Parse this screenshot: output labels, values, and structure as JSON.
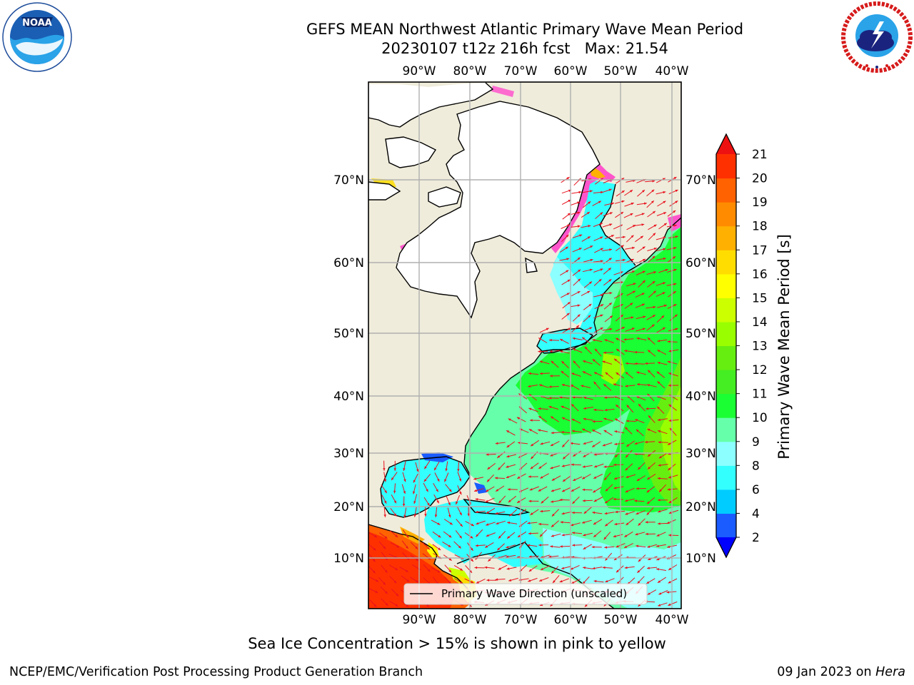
{
  "title": {
    "line1": "GEFS MEAN Northwest Atlantic Primary Wave Mean Period",
    "line2": "20230107 t12z 216h fcst   Max: 21.54"
  },
  "logos": {
    "left": {
      "icon": "noaa-logo",
      "text": "NOAA",
      "ring_text": "NATIONAL OCEANIC AND ATMOSPHERIC ADMINISTRATION · U.S. DEPARTMENT OF COMMERCE"
    },
    "right": {
      "icon": "nws-logo",
      "ring_text": "NATIONAL WEATHER SERVICE"
    }
  },
  "map": {
    "lon_labels": [
      "90°W",
      "80°W",
      "70°W",
      "60°W",
      "50°W",
      "40°W"
    ],
    "lat_labels": [
      "70°N",
      "60°N",
      "50°N",
      "40°N",
      "30°N",
      "20°N",
      "10°N"
    ],
    "legend_label": "Primary Wave Direction (unscaled)",
    "colors": {
      "land": "#efecdb",
      "ice_land": "#ffffff",
      "grid": "#b0b0b0",
      "arrow": "#e8121e"
    }
  },
  "colorbar": {
    "label": "Primary Wave Mean Period [s]",
    "ticks": [
      "2",
      "4",
      "6",
      "8",
      "9",
      "10",
      "11",
      "12",
      "13",
      "14",
      "15",
      "16",
      "17",
      "18",
      "19",
      "20",
      "21"
    ],
    "colors": [
      "#1a5cff",
      "#00ccff",
      "#33ffff",
      "#8cffff",
      "#66ffaa",
      "#1aff33",
      "#44ee22",
      "#66ee11",
      "#99ff00",
      "#ccff00",
      "#ffff00",
      "#ffdd00",
      "#ffb000",
      "#ff8c00",
      "#ff6200",
      "#ff3000"
    ],
    "under_color": "#0000ff",
    "over_color": "#ee1111"
  },
  "note": "Sea Ice Concentration > 15% is shown in pink to yellow",
  "footer": {
    "left": "NCEP/EMC/Verification Post Processing Product Generation Branch",
    "date": "09 Jan 2023 on",
    "host": "Hera"
  }
}
